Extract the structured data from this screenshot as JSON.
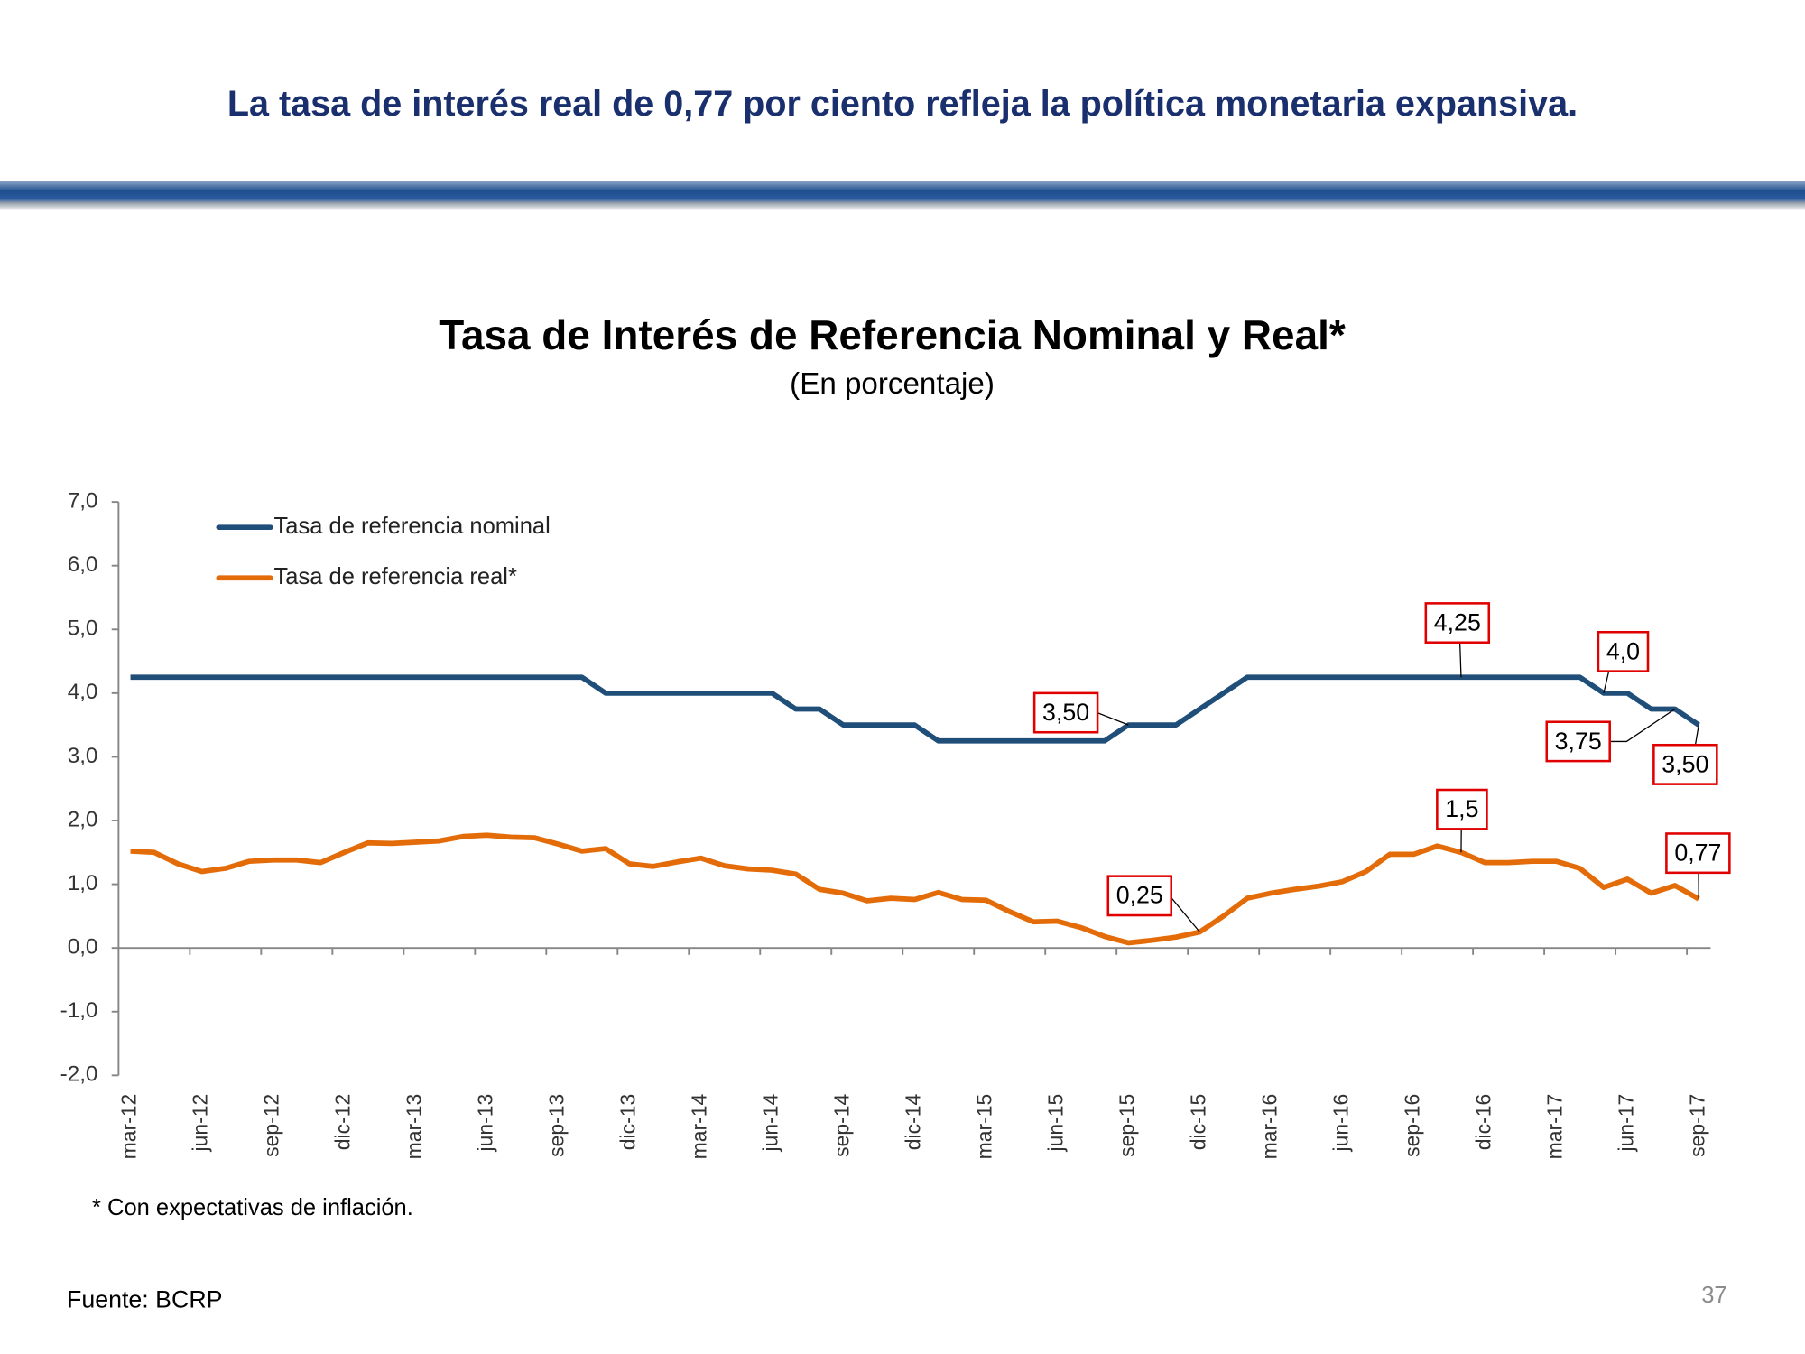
{
  "slide": {
    "header": "La tasa de interés real de 0,77 por ciento refleja la política monetaria expansiva.",
    "footnote": "* Con expectativas de inflación.",
    "source": "Fuente: BCRP",
    "page_number": "37"
  },
  "chart_data": {
    "type": "line",
    "title": "Tasa de Interés de Referencia  Nominal y Real*",
    "subtitle": "(En porcentaje)",
    "categories": [
      "mar-12",
      null,
      null,
      "jun-12",
      null,
      null,
      "sep-12",
      null,
      null,
      "dic-12",
      null,
      null,
      "mar-13",
      null,
      null,
      "jun-13",
      null,
      null,
      "sep-13",
      null,
      null,
      "dic-13",
      null,
      null,
      "mar-14",
      null,
      null,
      "jun-14",
      null,
      null,
      "sep-14",
      null,
      null,
      "dic-14",
      null,
      null,
      "mar-15",
      null,
      null,
      "jun-15",
      null,
      null,
      "sep-15",
      null,
      null,
      "dic-15",
      null,
      null,
      "mar-16",
      null,
      null,
      "jun-16",
      null,
      null,
      "sep-16",
      null,
      null,
      "dic-16",
      null,
      null,
      "mar-17",
      null,
      null,
      "jun-17",
      null,
      null,
      "sep-17"
    ],
    "series": [
      {
        "name": "Tasa de referencia nominal",
        "color": "#1f4e79",
        "values": [
          4.25,
          4.25,
          4.25,
          4.25,
          4.25,
          4.25,
          4.25,
          4.25,
          4.25,
          4.25,
          4.25,
          4.25,
          4.25,
          4.25,
          4.25,
          4.25,
          4.25,
          4.25,
          4.25,
          4.25,
          4,
          4,
          4,
          4,
          4,
          4,
          4,
          4,
          3.75,
          3.75,
          3.5,
          3.5,
          3.5,
          3.5,
          3.25,
          3.25,
          3.25,
          3.25,
          3.25,
          3.25,
          3.25,
          3.25,
          3.5,
          3.5,
          3.5,
          3.75,
          4,
          4.25,
          4.25,
          4.25,
          4.25,
          4.25,
          4.25,
          4.25,
          4.25,
          4.25,
          4.25,
          4.25,
          4.25,
          4.25,
          4.25,
          4.25,
          4,
          4,
          3.75,
          3.75,
          3.5
        ],
        "value_labels": [
          null,
          null,
          null,
          null,
          null,
          null,
          null,
          null,
          null,
          null,
          null,
          null,
          null,
          null,
          null,
          null,
          null,
          null,
          null,
          null,
          null,
          null,
          null,
          null,
          null,
          null,
          null,
          null,
          null,
          null,
          null,
          null,
          null,
          null,
          null,
          null,
          null,
          null,
          null,
          null,
          null,
          null,
          "3,50",
          null,
          null,
          null,
          null,
          null,
          null,
          null,
          null,
          null,
          null,
          null,
          null,
          null,
          "4,25",
          null,
          null,
          null,
          null,
          null,
          "4,0",
          null,
          null,
          "3,75",
          "3,50"
        ]
      },
      {
        "name": "Tasa de referencia real*",
        "color": "#e36c09",
        "values": [
          1.52,
          1.5,
          1.32,
          1.2,
          1.25,
          1.36,
          1.38,
          1.38,
          1.34,
          1.5,
          1.65,
          1.64,
          1.66,
          1.68,
          1.75,
          1.77,
          1.74,
          1.73,
          1.63,
          1.52,
          1.56,
          1.32,
          1.28,
          1.35,
          1.41,
          1.29,
          1.24,
          1.22,
          1.16,
          0.92,
          0.86,
          0.74,
          0.78,
          0.76,
          0.87,
          0.76,
          0.75,
          0.57,
          0.41,
          0.42,
          0.32,
          0.18,
          0.08,
          0.12,
          0.17,
          0.25,
          0.5,
          0.78,
          0.86,
          0.92,
          0.97,
          1.04,
          1.2,
          1.47,
          1.47,
          1.6,
          1.5,
          1.34,
          1.34,
          1.36,
          1.36,
          1.25,
          0.95,
          1.08,
          0.86,
          0.98,
          0.77
        ],
        "value_labels": [
          null,
          null,
          null,
          null,
          null,
          null,
          null,
          null,
          null,
          null,
          null,
          null,
          null,
          null,
          null,
          null,
          null,
          null,
          null,
          null,
          null,
          null,
          null,
          null,
          null,
          null,
          null,
          null,
          null,
          null,
          null,
          null,
          null,
          null,
          null,
          null,
          null,
          null,
          null,
          null,
          null,
          null,
          null,
          null,
          null,
          "0,25",
          null,
          null,
          null,
          null,
          null,
          null,
          null,
          null,
          null,
          null,
          "1,5",
          null,
          null,
          null,
          null,
          null,
          null,
          null,
          null,
          null,
          "0,77"
        ]
      }
    ],
    "ylim": [
      -2,
      7
    ],
    "yticks": [
      {
        "value": -2,
        "label": "-2,0"
      },
      {
        "value": -1,
        "label": "-1,0"
      },
      {
        "value": 0,
        "label": "0,0"
      },
      {
        "value": 1,
        "label": "1,0"
      },
      {
        "value": 2,
        "label": "2,0"
      },
      {
        "value": 3,
        "label": "3,0"
      },
      {
        "value": 4,
        "label": "4,0"
      },
      {
        "value": 5,
        "label": "5,0"
      },
      {
        "value": 6,
        "label": "6,0"
      },
      {
        "value": 7,
        "label": "7,0"
      }
    ],
    "grid": false,
    "legend": "top-left"
  }
}
